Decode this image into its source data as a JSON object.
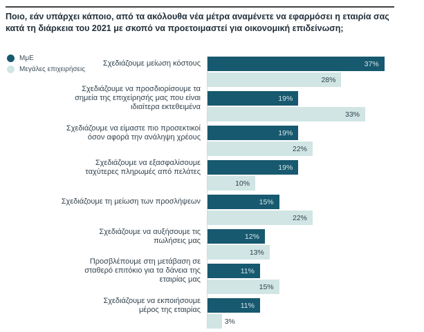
{
  "title": "Ποιο, εάν υπάρχει κάποιο, από τα ακόλουθα νέα μέτρα αναμένετε να εφαρμόσει η εταιρία σας κατά τη διάρκεια του 2021 με σκοπό να προετοιμαστεί για οικονομική επιδείνωση;",
  "legend": [
    {
      "label": "ΜμΕ",
      "color": "#17596f"
    },
    {
      "label": "Μεγάλες επιχειρήσεις",
      "color": "#d0e5e4"
    }
  ],
  "colors": {
    "sme_bar": "#17596f",
    "large_bar": "#d0e5e4",
    "value_on_dark": "#d7e5e9",
    "value_on_light": "#32424d",
    "title_text": "#212f3a",
    "rule": "#3e4043"
  },
  "chart_data": {
    "type": "bar",
    "orientation": "horizontal",
    "title": "Ποιο, εάν υπάρχει κάποιο, από τα ακόλουθα νέα μέτρα αναμένετε να εφαρμόσει η εταιρία σας κατά τη διάρκεια του 2021 με σκοπό να προετοιμαστεί για οικονομική επιδείνωση;",
    "categories": [
      "Σχεδιάζουμε μείωση κόστους",
      "Σχεδιάζουμε να προσδιορίσουμε τα\nσημεία της επιχείρησής μας που είναι\nιδιαίτερα εκτεθειμένα",
      "Σχεδιάζουμε να είμαστε πιο προσεκτικοί\nόσον αφορά την ανάληψη χρέους",
      "Σχεδιάζουμε να εξασφαλίσουμε\nταχύτερες πληρωμές από πελάτες",
      "Σχεδιάζουμε τη μείωση των προσλήψεων",
      "Σχεδιάζουμε να αυξήσουμε τις\nπωλήσεις μας",
      "Προσβλέπουμε στη μετάβαση σε\nσταθερό επιτόκιο για τα δάνεια της\nεταιρίας μας",
      "Σχεδιάζουμε να εκποιήσουμε\nμέρος της εταιρίας"
    ],
    "series": [
      {
        "name": "ΜμΕ",
        "color": "#17596f",
        "values": [
          37,
          19,
          19,
          19,
          15,
          12,
          11,
          11
        ]
      },
      {
        "name": "Μεγάλες επιχειρήσεις",
        "color": "#d0e5e4",
        "values": [
          28,
          33,
          22,
          10,
          22,
          13,
          15,
          3
        ]
      }
    ],
    "value_suffix": "%",
    "xlim": [
      0,
      40
    ],
    "grid": false,
    "legend_position": "top-left",
    "value_labels": "on-bars"
  }
}
